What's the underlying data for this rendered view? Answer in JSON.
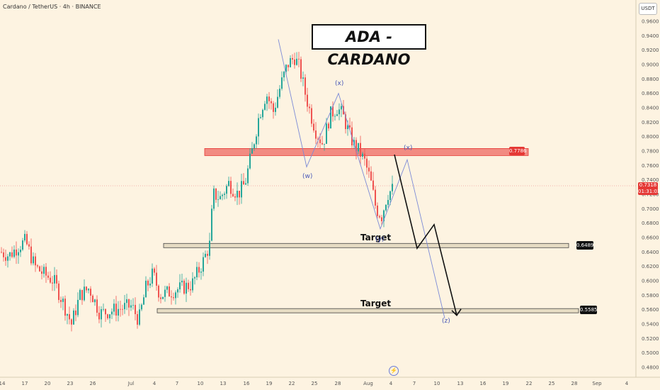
{
  "header": {
    "symbol": "Cardano / TetherUS · 4h · BINANCE",
    "banner": "ADA - CARDANO",
    "unit": "USDT"
  },
  "colors": {
    "background": "#fdf3e1",
    "up": "#26a69a",
    "down": "#ef5350",
    "resistance_fill": "#f28b82",
    "target_fill": "#e6dcc3",
    "wave": "#7b8ad6",
    "arrow": "#111111"
  },
  "chart_data": {
    "type": "candlestick",
    "ylim": [
      0.48,
      0.97
    ],
    "y_ticks": [
      0.48,
      0.5,
      0.52,
      0.54,
      0.56,
      0.58,
      0.6,
      0.62,
      0.64,
      0.66,
      0.68,
      0.7,
      0.72,
      0.74,
      0.76,
      0.78,
      0.8,
      0.82,
      0.84,
      0.86,
      0.88,
      0.9,
      0.92,
      0.94,
      0.96
    ],
    "y_tick_labels": [
      "0.4800",
      "0.5000",
      "0.5200",
      "0.5400",
      "0.5600",
      "0.5800",
      "0.6000",
      "0.6200",
      "0.6400",
      "0.6600",
      "0.6800",
      "0.7000",
      "0.7200",
      "0.7400",
      "0.7600",
      "0.7800",
      "0.8000",
      "0.8200",
      "0.8400",
      "0.8600",
      "0.8800",
      "0.9000",
      "0.9200",
      "0.9400",
      "0.9600"
    ],
    "x_ticks": [
      "14",
      "17",
      "20",
      "23",
      "26",
      "Jul",
      "4",
      "7",
      "10",
      "13",
      "16",
      "19",
      "22",
      "25",
      "28",
      "Aug",
      "4",
      "7",
      "10",
      "13",
      "16",
      "19",
      "22",
      "25",
      "28",
      "Sep",
      "4"
    ],
    "price_path": [
      [
        0,
        0.64
      ],
      [
        12,
        0.635
      ],
      [
        25,
        0.648
      ],
      [
        35,
        0.655
      ],
      [
        48,
        0.62
      ],
      [
        60,
        0.61
      ],
      [
        75,
        0.6
      ],
      [
        88,
        0.57
      ],
      [
        100,
        0.54
      ],
      [
        112,
        0.58
      ],
      [
        125,
        0.59
      ],
      [
        140,
        0.555
      ],
      [
        155,
        0.558
      ],
      [
        170,
        0.562
      ],
      [
        185,
        0.565
      ],
      [
        195,
        0.545
      ],
      [
        205,
        0.59
      ],
      [
        215,
        0.61
      ],
      [
        225,
        0.58
      ],
      [
        240,
        0.585
      ],
      [
        255,
        0.59
      ],
      [
        270,
        0.595
      ],
      [
        285,
        0.625
      ],
      [
        295,
        0.65
      ],
      [
        300,
        0.72
      ],
      [
        310,
        0.715
      ],
      [
        322,
        0.735
      ],
      [
        335,
        0.72
      ],
      [
        345,
        0.735
      ],
      [
        355,
        0.78
      ],
      [
        365,
        0.83
      ],
      [
        375,
        0.86
      ],
      [
        385,
        0.835
      ],
      [
        395,
        0.87
      ],
      [
        405,
        0.9
      ],
      [
        415,
        0.91
      ],
      [
        422,
        0.895
      ],
      [
        430,
        0.86
      ],
      [
        438,
        0.83
      ],
      [
        446,
        0.805
      ],
      [
        455,
        0.79
      ],
      [
        465,
        0.83
      ],
      [
        475,
        0.84
      ],
      [
        483,
        0.83
      ],
      [
        490,
        0.81
      ],
      [
        498,
        0.79
      ],
      [
        506,
        0.78
      ],
      [
        514,
        0.765
      ],
      [
        522,
        0.74
      ],
      [
        530,
        0.7
      ],
      [
        538,
        0.69
      ],
      [
        546,
        0.72
      ],
      [
        554,
        0.728
      ]
    ],
    "levels": [
      {
        "value": 0.7786,
        "label": "0.7786",
        "kind": "resistance"
      },
      {
        "value": 0.6489,
        "label": "0.6489",
        "kind": "target",
        "text": "Target"
      },
      {
        "value": 0.5585,
        "label": "0.5585",
        "kind": "target",
        "text": "Target"
      }
    ],
    "current_price": {
      "value": 0.7318,
      "label": "0.7318",
      "countdown": "01:31:03"
    },
    "wave_labels": [
      "(w)",
      "(x)",
      "(y)",
      "(x)",
      "(z)"
    ],
    "wave_path": [
      [
        393,
        0.935
      ],
      [
        433,
        0.758
      ],
      [
        478,
        0.86
      ],
      [
        537,
        0.672
      ],
      [
        575,
        0.768
      ],
      [
        628,
        0.548
      ]
    ],
    "projection_path": [
      [
        557,
        0.775
      ],
      [
        589,
        0.645
      ],
      [
        613,
        0.678
      ],
      [
        645,
        0.552
      ]
    ],
    "annotation": {
      "title": "ADA - CARDANO"
    }
  }
}
